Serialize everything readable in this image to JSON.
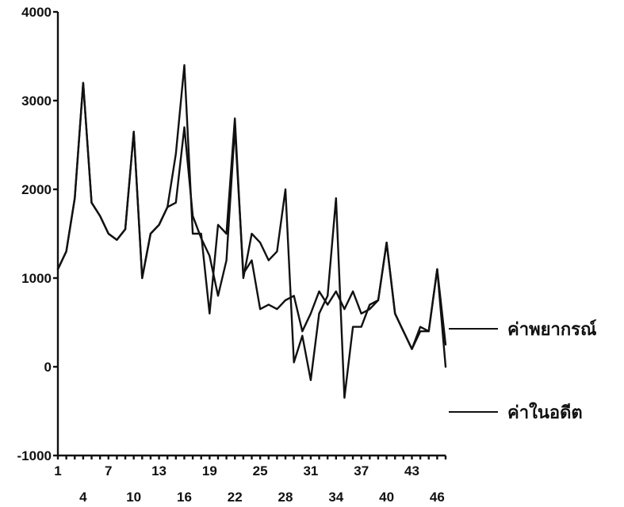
{
  "chart_data": {
    "type": "line",
    "x": [
      1,
      2,
      3,
      4,
      5,
      6,
      7,
      8,
      9,
      10,
      11,
      12,
      13,
      14,
      15,
      16,
      17,
      18,
      19,
      20,
      21,
      22,
      23,
      24,
      25,
      26,
      27,
      28,
      29,
      30,
      31,
      32,
      33,
      34,
      35,
      36,
      37,
      38,
      39,
      40,
      41,
      42,
      43,
      44,
      45,
      46,
      47
    ],
    "x_tick_labels_row1": [
      "1",
      "7",
      "13",
      "19",
      "25",
      "31",
      "37",
      "43"
    ],
    "x_tick_labels_row2": [
      "4",
      "10",
      "16",
      "22",
      "28",
      "34",
      "40",
      "46"
    ],
    "y_ticks": [
      "4000",
      "3000",
      "2000",
      "1000",
      "0",
      "-1000"
    ],
    "ylim": [
      -1000,
      4000
    ],
    "xlim": [
      1,
      47
    ],
    "title": "",
    "xlabel": "",
    "ylabel": "",
    "legend_position": "right",
    "grid": false,
    "series": [
      {
        "name": "ค่าพยากรณ์",
        "values": [
          1100,
          1300,
          1900,
          3200,
          1850,
          1700,
          1500,
          1430,
          1550,
          2650,
          1000,
          1500,
          1600,
          1800,
          1850,
          2700,
          1700,
          1450,
          1250,
          800,
          1200,
          2700,
          1050,
          1200,
          650,
          700,
          650,
          750,
          800,
          400,
          600,
          850,
          700,
          850,
          650,
          850,
          600,
          650,
          750,
          1400,
          600,
          400,
          200,
          400,
          400,
          1100,
          250
        ]
      },
      {
        "name": "ค่าในอดีต",
        "values": [
          1100,
          1300,
          1900,
          3200,
          1850,
          1700,
          1500,
          1430,
          1550,
          2650,
          1000,
          1500,
          1600,
          1800,
          2400,
          3400,
          1500,
          1500,
          600,
          1600,
          1500,
          2800,
          1000,
          1500,
          1400,
          1200,
          1300,
          2000,
          50,
          350,
          -150,
          600,
          800,
          1900,
          -350,
          450,
          450,
          700,
          750,
          1400,
          600,
          400,
          200,
          450,
          400,
          1100,
          0
        ]
      }
    ]
  }
}
